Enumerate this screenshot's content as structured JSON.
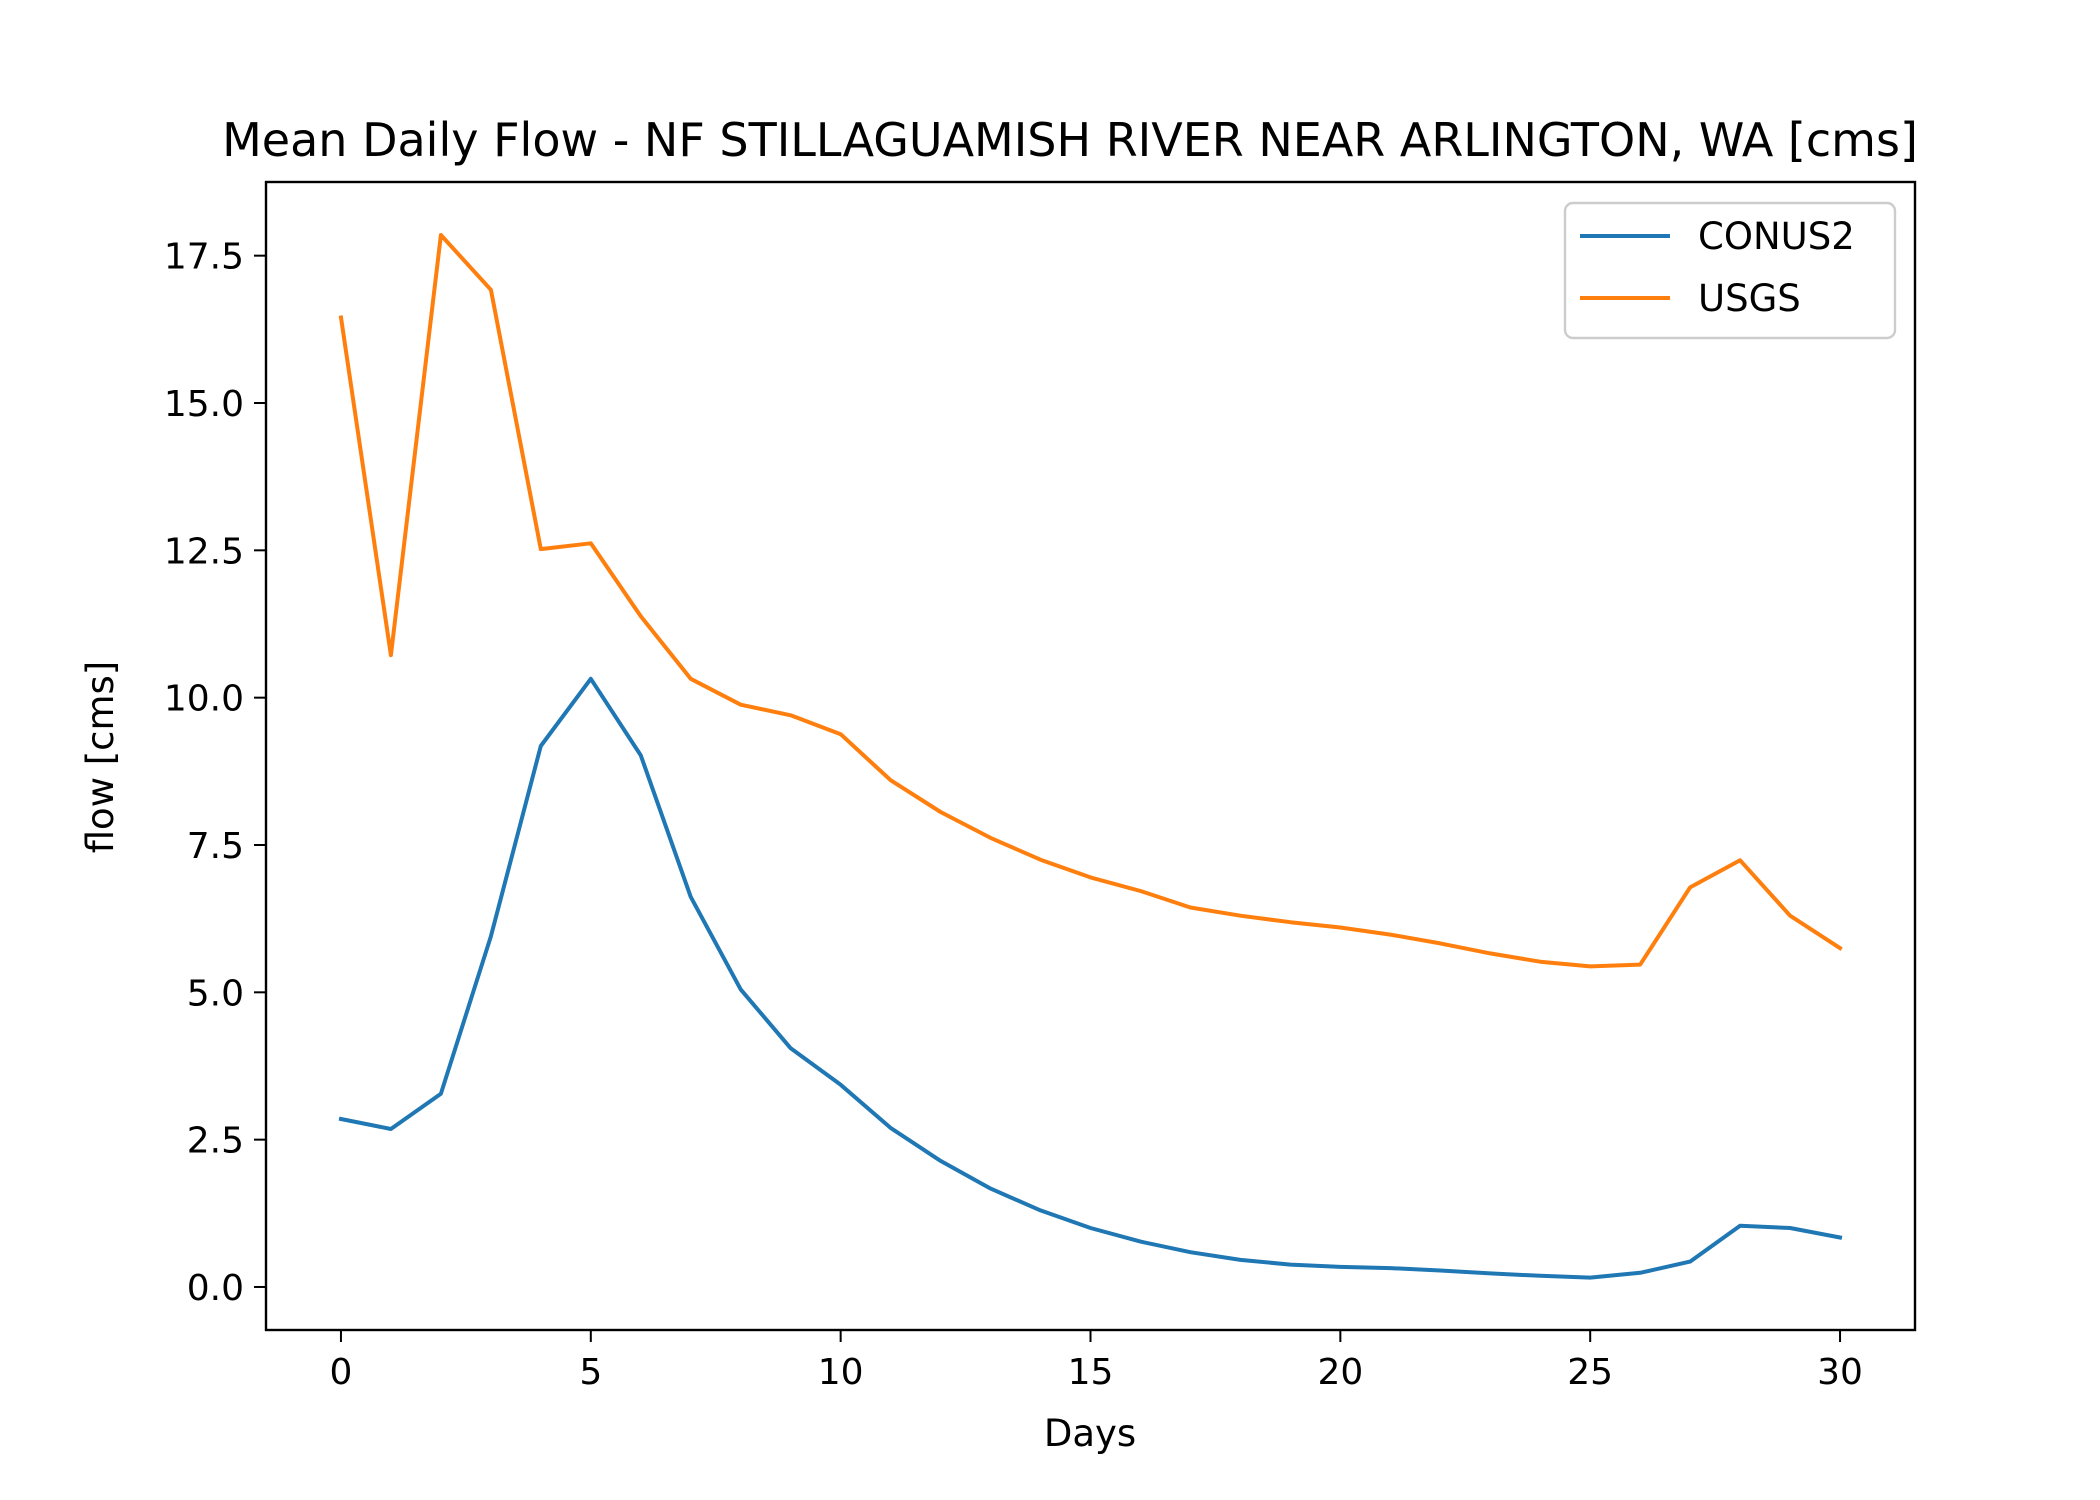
{
  "chart_data": {
    "type": "line",
    "title": "Mean Daily Flow - NF STILLAGUAMISH RIVER NEAR ARLINGTON, WA [cms]",
    "xlabel": "Days",
    "ylabel": "flow [cms]",
    "xlim": [
      -1.5,
      31.5
    ],
    "ylim": [
      -0.73,
      18.75
    ],
    "xticks": [
      0,
      5,
      10,
      15,
      20,
      25,
      30
    ],
    "yticks": [
      0.0,
      2.5,
      5.0,
      7.5,
      10.0,
      12.5,
      15.0,
      17.5
    ],
    "ytick_labels": [
      "0.0",
      "2.5",
      "5.0",
      "7.5",
      "10.0",
      "12.5",
      "15.0",
      "17.5"
    ],
    "grid": false,
    "legend_position": "top-right",
    "x": [
      0,
      1,
      2,
      3,
      4,
      5,
      6,
      7,
      8,
      9,
      10,
      11,
      12,
      13,
      14,
      15,
      16,
      17,
      18,
      19,
      20,
      21,
      22,
      23,
      24,
      25,
      26,
      27,
      28,
      29,
      30
    ],
    "series": [
      {
        "name": "CONUS2",
        "color": "#1f77b4",
        "values": [
          2.85,
          2.68,
          3.28,
          5.95,
          9.18,
          10.32,
          9.02,
          6.62,
          5.05,
          4.05,
          3.43,
          2.7,
          2.14,
          1.67,
          1.3,
          1.0,
          0.77,
          0.59,
          0.46,
          0.38,
          0.34,
          0.32,
          0.28,
          0.23,
          0.19,
          0.16,
          0.24,
          0.43,
          1.04,
          1.0,
          0.84
        ]
      },
      {
        "name": "USGS",
        "color": "#ff7f0e",
        "values": [
          16.45,
          10.72,
          17.85,
          16.92,
          12.52,
          12.62,
          11.38,
          10.32,
          9.88,
          9.7,
          9.38,
          8.6,
          8.06,
          7.62,
          7.25,
          6.95,
          6.72,
          6.44,
          6.3,
          6.19,
          6.1,
          5.98,
          5.83,
          5.66,
          5.52,
          5.44,
          5.47,
          6.78,
          7.24,
          6.3,
          5.75
        ]
      }
    ]
  }
}
